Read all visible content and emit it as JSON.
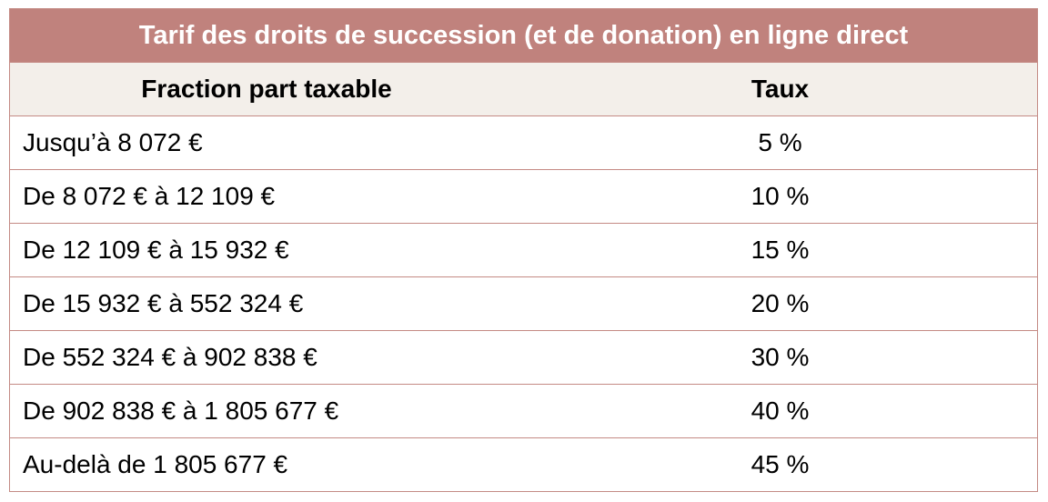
{
  "table": {
    "title": "Tarif des droits de succession (et de donation) en ligne direct",
    "columns": [
      "Fraction part taxable",
      "Taux"
    ],
    "rows": [
      {
        "fraction": "Jusqu’à 8 072 €",
        "taux": "5 %"
      },
      {
        "fraction": "De 8 072 € à 12 109 €",
        "taux": "10 %"
      },
      {
        "fraction": "De 12 109 € à 15 932 €",
        "taux": "15 %"
      },
      {
        "fraction": "De 15 932 € à 552 324 €",
        "taux": "20 %"
      },
      {
        "fraction": "De 552 324 € à 902 838 €",
        "taux": "30 %"
      },
      {
        "fraction": "De 902 838 € à 1 805 677 €",
        "taux": "40 %"
      },
      {
        "fraction": "Au-delà de 1 805 677 €",
        "taux": "45 %"
      }
    ]
  },
  "colors": {
    "title_bg": "#c0827d",
    "header_bg": "#f3efea",
    "border": "#c48a84"
  }
}
